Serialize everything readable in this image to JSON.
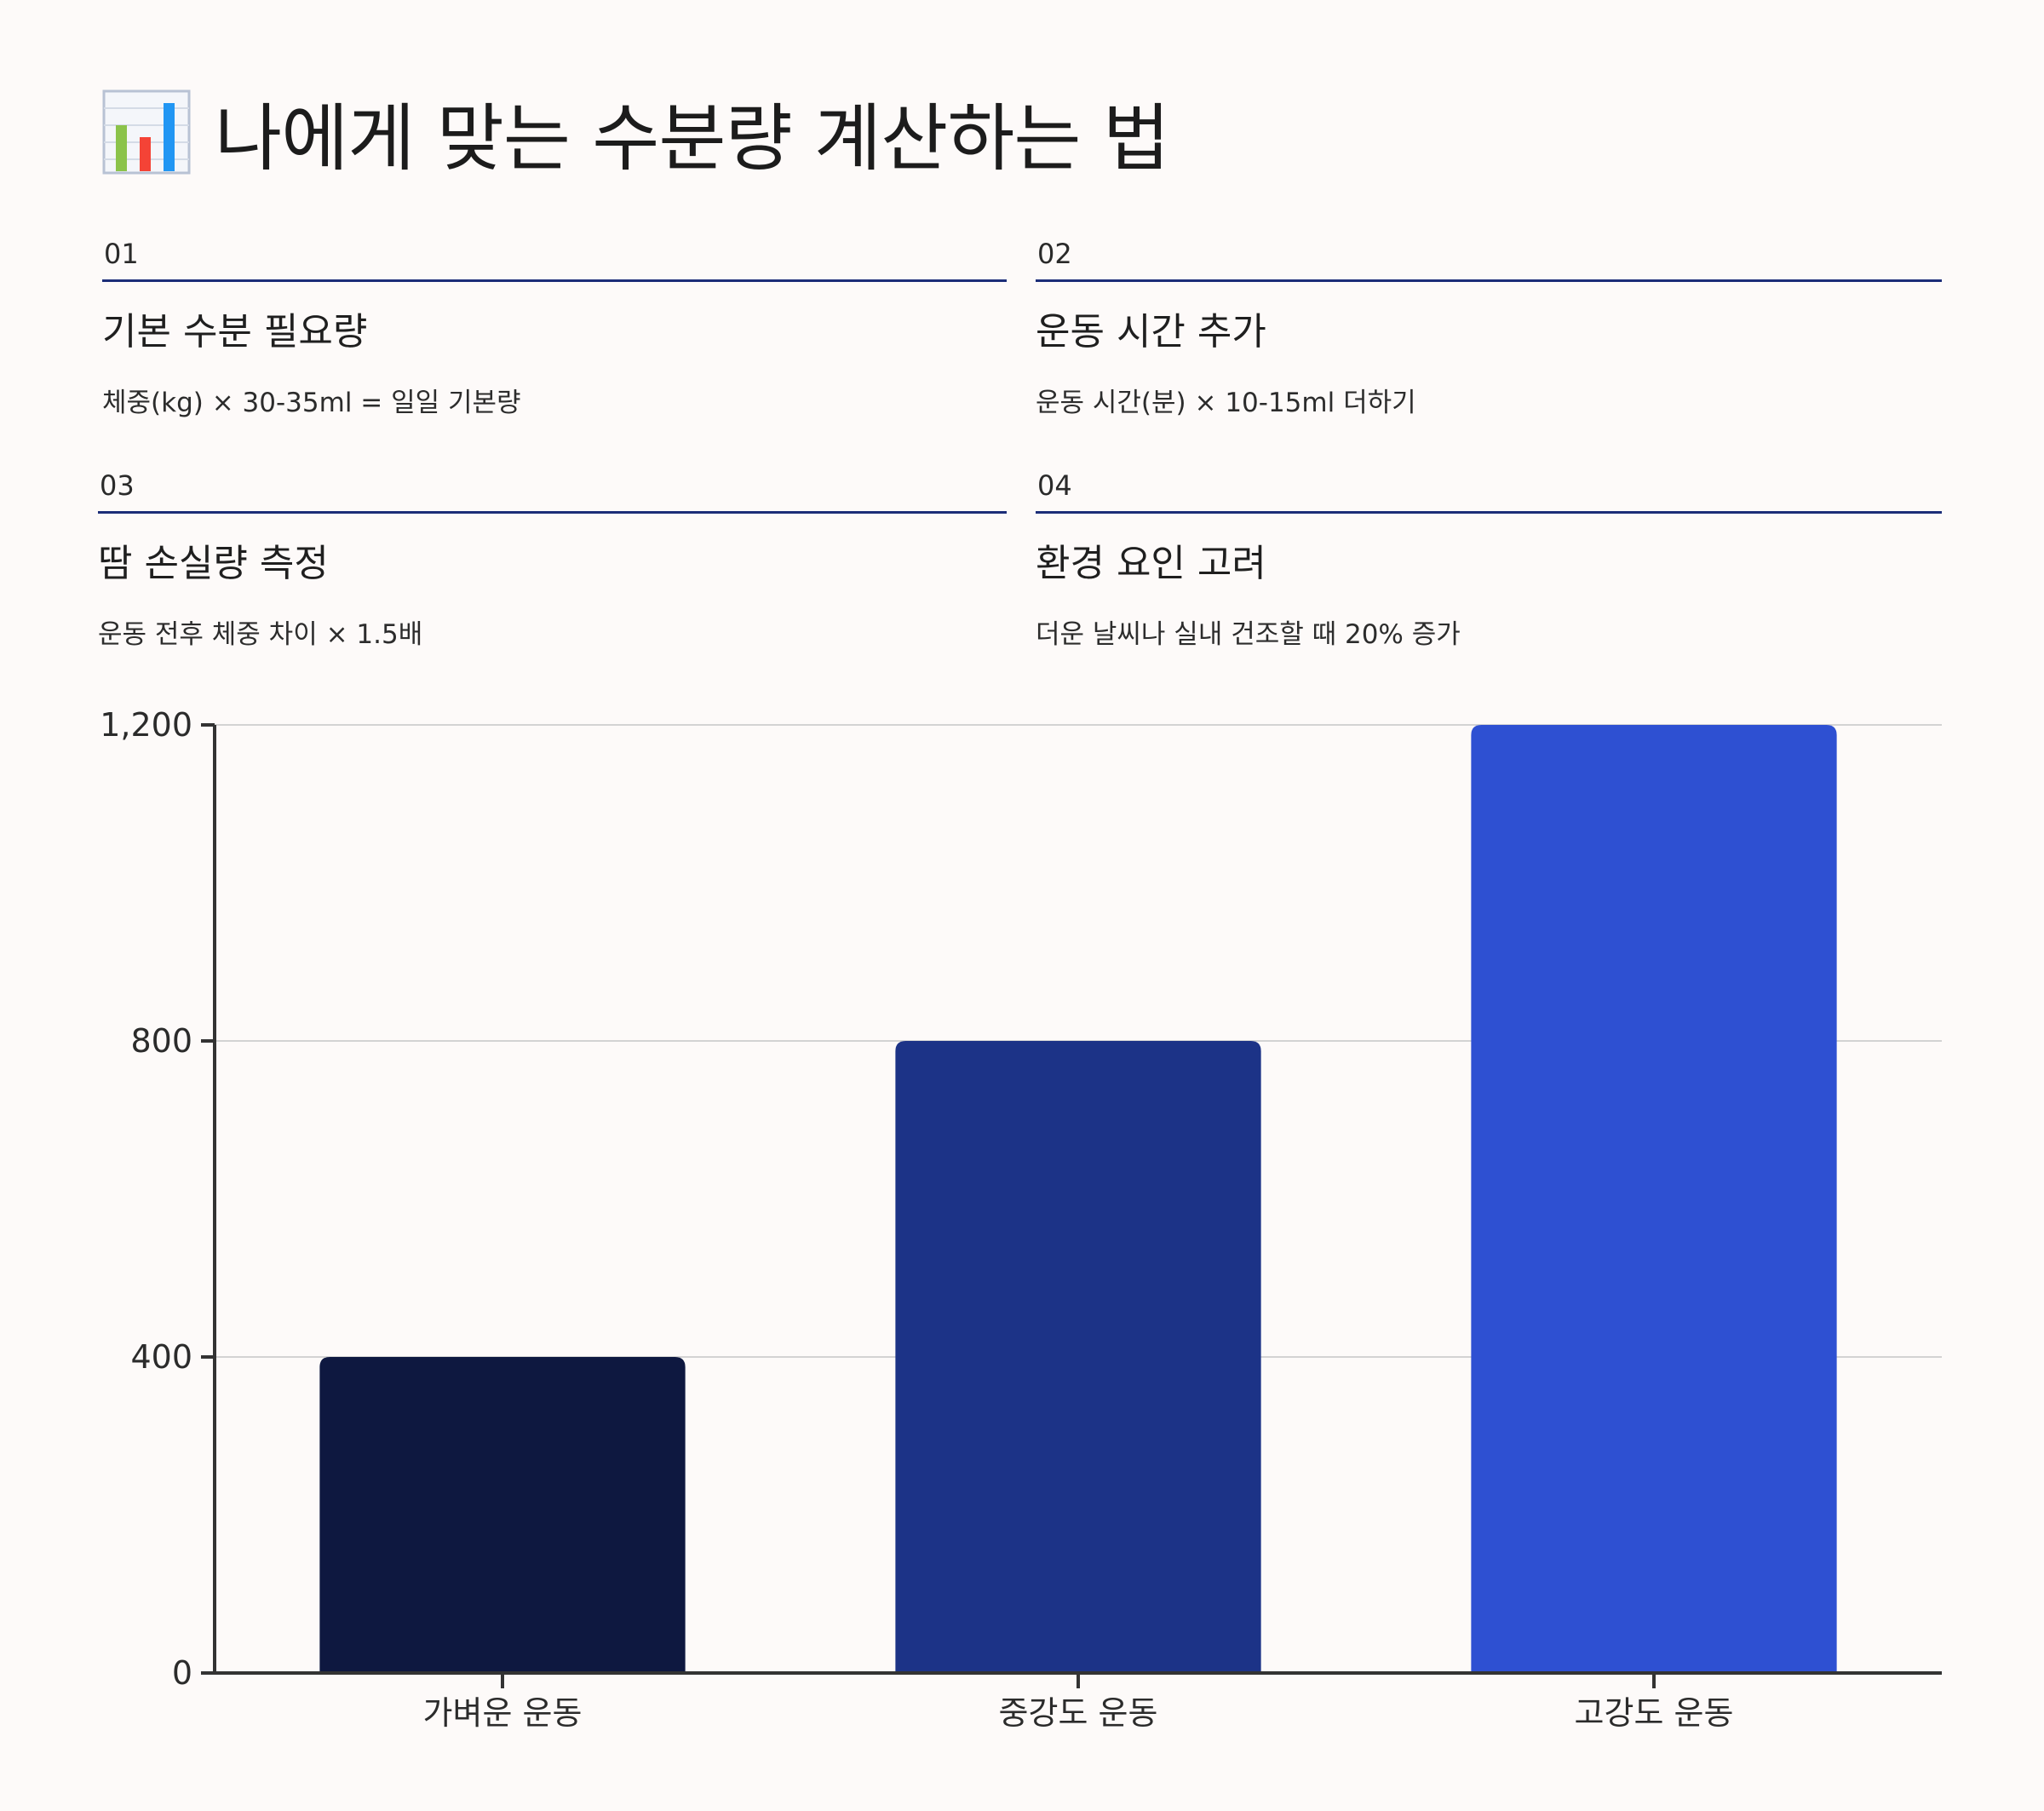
{
  "title": "나에게 맞는 수분량 계산하는 법",
  "title_icon": "bar-chart-icon",
  "steps": [
    {
      "num": "01",
      "heading": "기본 수분 필요량",
      "desc": "체중(kg) × 30-35ml = 일일 기본량"
    },
    {
      "num": "02",
      "heading": "운동 시간 추가",
      "desc": "운동 시간(분) × 10-15ml 더하기"
    },
    {
      "num": "03",
      "heading": "땀 손실량 측정",
      "desc": "운동 전후 체중 차이 × 1.5배"
    },
    {
      "num": "04",
      "heading": "환경 요인 고려",
      "desc": "더운 날씨나 실내 건조할 때 20% 증가"
    }
  ],
  "chart_data": {
    "type": "bar",
    "categories": [
      "가벼운 운동",
      "중강도 운동",
      "고강도 운동"
    ],
    "values": [
      400,
      800,
      1200
    ],
    "colors": [
      "#0e1840",
      "#1c3387",
      "#2e50d2"
    ],
    "yticks": [
      0,
      400,
      800,
      1200
    ],
    "ytick_labels": [
      "0",
      "400",
      "800",
      "1,200"
    ],
    "ylim": [
      0,
      1200
    ],
    "grid": true,
    "title": "",
    "xlabel": "",
    "ylabel": ""
  }
}
